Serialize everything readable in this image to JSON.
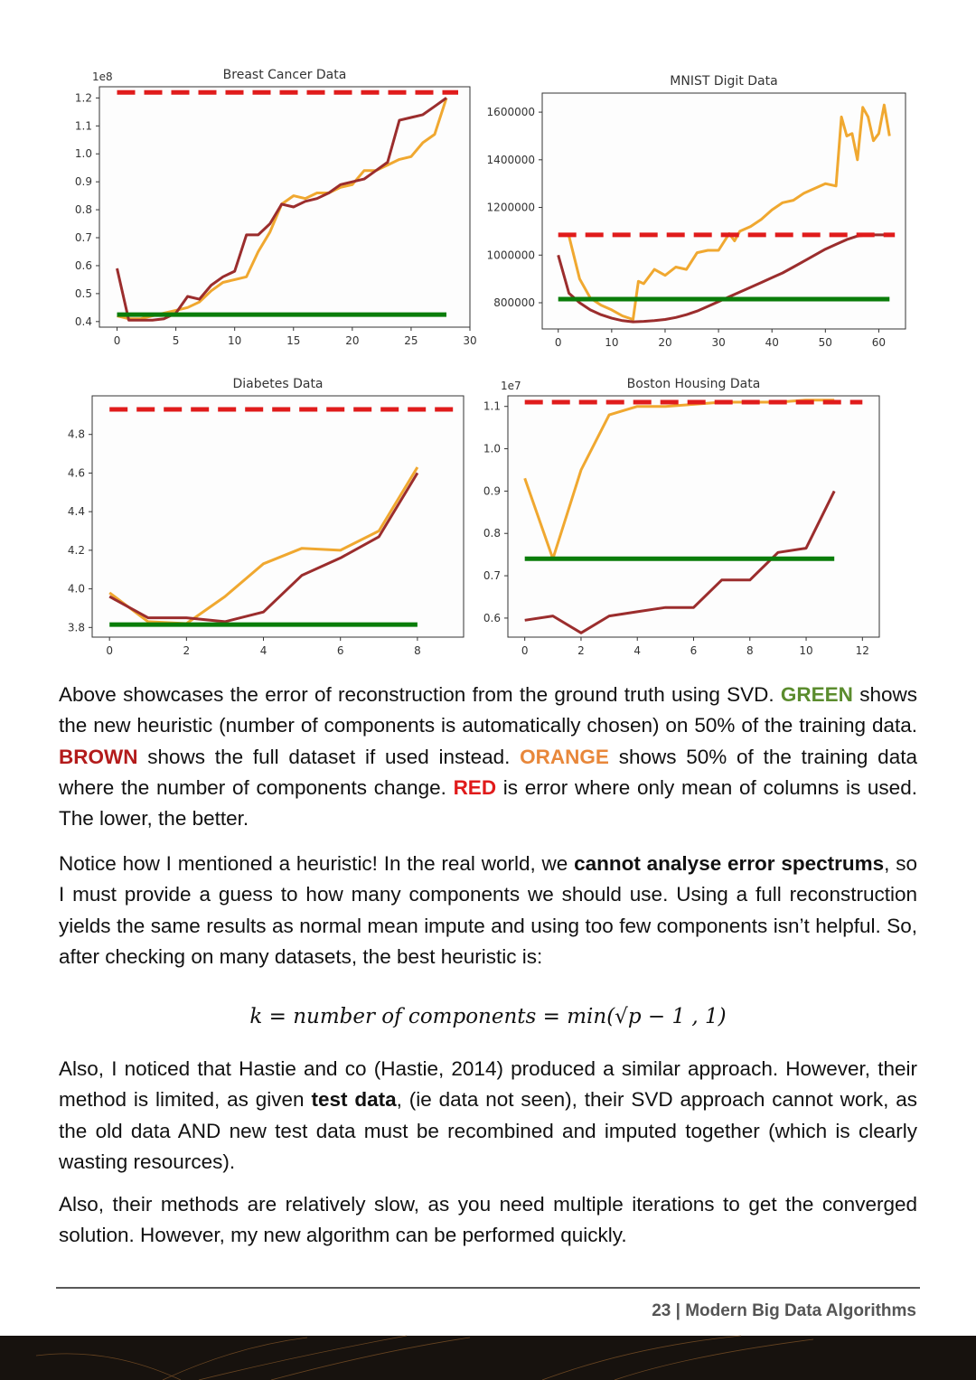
{
  "chart_data": [
    {
      "type": "line",
      "title": "Breast Cancer Data",
      "offset_label": "1e8",
      "xlim": [
        -1.5,
        30
      ],
      "xticks": [
        0,
        5,
        10,
        15,
        20,
        25,
        30
      ],
      "ylim": [
        0.38,
        1.24
      ],
      "yticks": [
        0.4,
        0.5,
        0.6,
        0.7,
        0.8,
        0.9,
        {
          "value": 1,
          "label": "1.0"
        },
        1.1,
        1.2
      ],
      "series": [
        {
          "color": "#f0a830",
          "width": 3,
          "x": [
            0,
            1,
            2,
            3,
            4,
            5,
            6,
            7,
            8,
            9,
            10,
            11,
            12,
            13,
            14,
            15,
            16,
            17,
            18,
            19,
            20,
            21,
            22,
            23,
            24,
            25,
            26,
            27,
            28
          ],
          "values": [
            0.42,
            0.41,
            0.41,
            0.42,
            0.43,
            0.44,
            0.45,
            0.47,
            0.51,
            0.54,
            0.55,
            0.56,
            0.65,
            0.72,
            0.82,
            0.85,
            0.84,
            0.86,
            0.86,
            0.88,
            0.89,
            0.94,
            0.94,
            0.96,
            0.98,
            0.99,
            1.04,
            1.07,
            1.2
          ]
        },
        {
          "color": "#9b2d2d",
          "width": 3,
          "x": [
            0,
            1,
            2,
            3,
            4,
            5,
            6,
            7,
            8,
            9,
            10,
            11,
            12,
            13,
            14,
            15,
            16,
            17,
            18,
            19,
            20,
            21,
            22,
            23,
            24,
            25,
            26,
            27,
            28
          ],
          "values": [
            0.59,
            0.405,
            0.405,
            0.405,
            0.41,
            0.43,
            0.49,
            0.48,
            0.53,
            0.56,
            0.58,
            0.71,
            0.71,
            0.75,
            0.82,
            0.81,
            0.83,
            0.84,
            0.86,
            0.89,
            0.9,
            0.91,
            0.94,
            0.97,
            1.12,
            1.13,
            1.14,
            1.17,
            1.2
          ]
        },
        {
          "color": "#e01b1b",
          "width": 5,
          "dashed": true,
          "x": [
            0,
            29
          ],
          "values": [
            1.22,
            1.22
          ]
        },
        {
          "color": "#0a7d0a",
          "width": 5,
          "x": [
            0,
            28
          ],
          "values": [
            0.425,
            0.425
          ]
        }
      ]
    },
    {
      "type": "line",
      "title": "MNIST Digit Data",
      "xlim": [
        -3,
        65
      ],
      "xticks": [
        0,
        10,
        20,
        30,
        40,
        50,
        60
      ],
      "ylim": [
        690000,
        1680000
      ],
      "yticks": [
        800000,
        1000000,
        1200000,
        1400000,
        1600000
      ],
      "series": [
        {
          "color": "#f0a830",
          "width": 3,
          "x": [
            2,
            4,
            6,
            8,
            10,
            12,
            14,
            15,
            16,
            18,
            20,
            22,
            24,
            26,
            28,
            30,
            32,
            33,
            34,
            36,
            38,
            40,
            42,
            44,
            46,
            48,
            50,
            52,
            53,
            54,
            55,
            56,
            57,
            58,
            59,
            60,
            61,
            62
          ],
          "values": [
            1080000,
            900000,
            820000,
            790000,
            770000,
            745000,
            730000,
            890000,
            880000,
            940000,
            915000,
            950000,
            940000,
            1010000,
            1020000,
            1020000,
            1090000,
            1060000,
            1100000,
            1120000,
            1150000,
            1190000,
            1220000,
            1230000,
            1260000,
            1280000,
            1300000,
            1290000,
            1580000,
            1500000,
            1510000,
            1400000,
            1620000,
            1580000,
            1480000,
            1510000,
            1630000,
            1500000
          ]
        },
        {
          "color": "#9b2d2d",
          "width": 3,
          "x": [
            0,
            2,
            4,
            6,
            8,
            10,
            12,
            14,
            16,
            18,
            20,
            22,
            24,
            26,
            28,
            30,
            32,
            34,
            36,
            38,
            40,
            42,
            44,
            46,
            48,
            50,
            52,
            54,
            56,
            58,
            60,
            62
          ],
          "values": [
            1000000,
            840000,
            800000,
            770000,
            750000,
            735000,
            725000,
            720000,
            722000,
            725000,
            730000,
            738000,
            750000,
            765000,
            785000,
            805000,
            825000,
            845000,
            865000,
            885000,
            905000,
            925000,
            950000,
            975000,
            1000000,
            1025000,
            1045000,
            1065000,
            1080000,
            1085000,
            1085000,
            1085000
          ]
        },
        {
          "color": "#e01b1b",
          "width": 5,
          "dashed": true,
          "x": [
            0,
            63
          ],
          "values": [
            1085000,
            1085000
          ]
        },
        {
          "color": "#0a7d0a",
          "width": 5,
          "x": [
            0,
            62
          ],
          "values": [
            815000,
            815000
          ]
        }
      ]
    },
    {
      "type": "line",
      "title": "Diabetes Data",
      "xlim": [
        -0.45,
        9.2
      ],
      "xticks": [
        0,
        2,
        4,
        6,
        8
      ],
      "ylim": [
        3.75,
        5.0
      ],
      "yticks": [
        3.8,
        {
          "value": 4,
          "label": "4.0"
        },
        4.2,
        4.4,
        4.6,
        4.8
      ],
      "series": [
        {
          "color": "#f0a830",
          "width": 3,
          "x": [
            0,
            1,
            2,
            3,
            4,
            5,
            6,
            7,
            8
          ],
          "values": [
            3.98,
            3.83,
            3.82,
            3.96,
            4.13,
            4.21,
            4.2,
            4.3,
            4.63
          ]
        },
        {
          "color": "#9b2d2d",
          "width": 3,
          "x": [
            0,
            1,
            2,
            3,
            4,
            5,
            6,
            7,
            8
          ],
          "values": [
            3.96,
            3.85,
            3.85,
            3.83,
            3.88,
            4.07,
            4.16,
            4.27,
            4.6
          ]
        },
        {
          "color": "#e01b1b",
          "width": 5,
          "dashed": true,
          "x": [
            0,
            9
          ],
          "values": [
            4.93,
            4.93
          ]
        },
        {
          "color": "#0a7d0a",
          "width": 5,
          "x": [
            0,
            8
          ],
          "values": [
            3.815,
            3.815
          ]
        }
      ]
    },
    {
      "type": "line",
      "title": "Boston Housing Data",
      "offset_label": "1e7",
      "xlim": [
        -0.6,
        12.6
      ],
      "xticks": [
        0,
        2,
        4,
        6,
        8,
        10,
        12
      ],
      "ylim": [
        0.555,
        1.125
      ],
      "yticks": [
        0.6,
        0.7,
        0.8,
        0.9,
        {
          "value": 1,
          "label": "1.0"
        },
        1.1
      ],
      "series": [
        {
          "color": "#f0a830",
          "width": 3,
          "x": [
            0,
            1,
            2,
            3,
            4,
            5,
            6,
            7,
            8,
            9,
            10,
            11
          ],
          "values": [
            0.93,
            0.74,
            0.95,
            1.08,
            1.1,
            1.1,
            1.105,
            1.11,
            1.11,
            1.11,
            1.115,
            1.115
          ]
        },
        {
          "color": "#9b2d2d",
          "width": 3,
          "x": [
            0,
            1,
            2,
            3,
            4,
            5,
            6,
            7,
            8,
            9,
            10,
            11
          ],
          "values": [
            0.595,
            0.605,
            0.565,
            0.605,
            0.615,
            0.625,
            0.625,
            0.69,
            0.69,
            0.755,
            0.765,
            0.9
          ]
        },
        {
          "color": "#e01b1b",
          "width": 5,
          "dashed": true,
          "x": [
            0,
            12
          ],
          "values": [
            1.11,
            1.11
          ]
        },
        {
          "color": "#0a7d0a",
          "width": 5,
          "x": [
            0,
            11
          ],
          "values": [
            0.74,
            0.74
          ]
        }
      ]
    }
  ],
  "document": {
    "p1": [
      "Above showcases the error of reconstruction from the ground truth using SVD.",
      "GREEN",
      "shows the new heuristic (number of components is automatically chosen) on 50% of the training data.",
      "BROWN",
      "shows the full dataset if used instead.",
      "ORANGE",
      "shows 50% of the training data where the number of components change.",
      "RED",
      "is error where only mean of columns is used. The lower, the better."
    ],
    "p2": [
      "Notice how I mentioned a heuristic! In the real world, we",
      "cannot analyse error spectrums",
      ", so I must provide a guess to how many components we should use. Using a full reconstruction yields the same results as normal mean impute and using too few components isn’t helpful. So, after checking on many datasets, the best heuristic is:"
    ],
    "formula": "k = number of components = min(√p − 1 , 1)",
    "p3": [
      "Also, I noticed that Hastie and co (Hastie, 2014) produced a similar approach. However, their method is limited, as given",
      "test data",
      ", (ie data not seen), their SVD approach cannot work, as the old data AND new test data must be recombined and imputed together (which is clearly wasting resources)."
    ],
    "p4": "Also, their methods are relatively slow, as you need multiple iterations to get the converged solution. However, my new algorithm can be performed quickly.",
    "footer": "23 | Modern Big Data Algorithms"
  }
}
